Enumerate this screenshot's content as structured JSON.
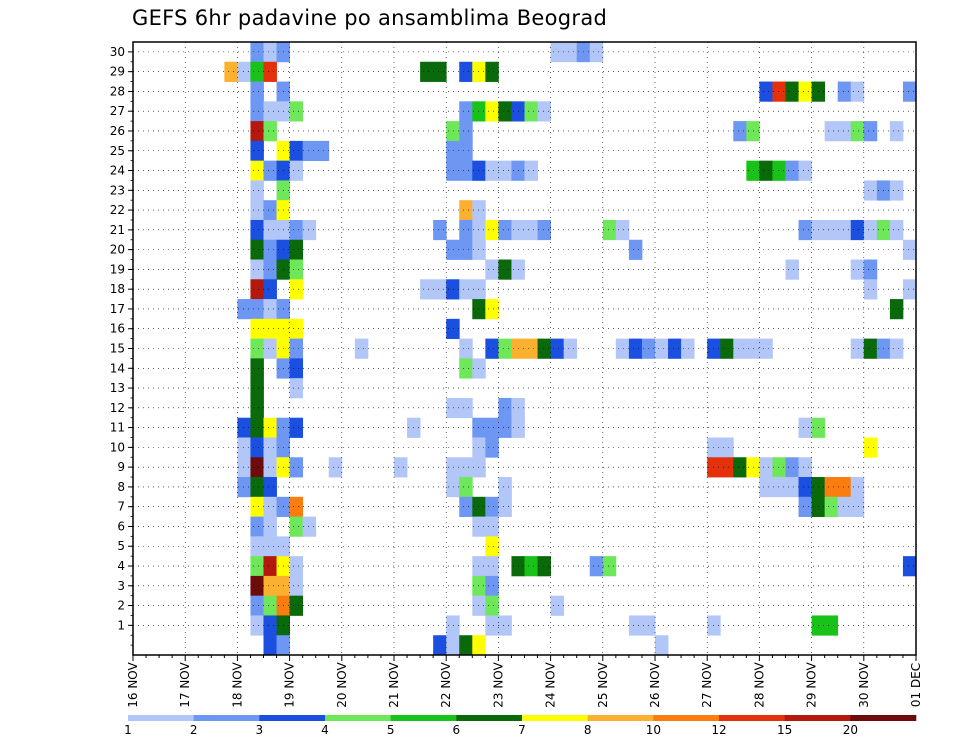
{
  "chart_data": {
    "type": "heatmap",
    "title": "GEFS 6hr padavine po ansamblima Beograd",
    "x_tick_labels": [
      "16 NOV",
      "17 NOV",
      "18 NOV",
      "19 NOV",
      "20 NOV",
      "21 NOV",
      "22 NOV",
      "23 NOV",
      "24 NOV",
      "25 NOV",
      "26 NOV",
      "27 NOV",
      "28 NOV",
      "29 NOV",
      "30 NOV",
      "01 DEC"
    ],
    "x_range": [
      "16 NOV 00h",
      "01 DEC 00h"
    ],
    "x_step_hours": 6,
    "y_tick_labels": [
      1,
      2,
      3,
      4,
      5,
      6,
      7,
      8,
      9,
      10,
      11,
      12,
      13,
      14,
      15,
      16,
      17,
      18,
      19,
      20,
      21,
      22,
      23,
      24,
      25,
      26,
      27,
      28,
      29,
      30
    ],
    "y_range": [
      0,
      30
    ],
    "grid": true,
    "colorbar": {
      "position": "bottom",
      "labels": [
        "1",
        "2",
        "3",
        "4",
        "5",
        "6",
        "7",
        "8",
        "10",
        "12",
        "15",
        "20"
      ],
      "colors": [
        "#b3c6f8",
        "#6e97f3",
        "#1a4fe0",
        "#6ee85a",
        "#19c218",
        "#0a6a0b",
        "#ffff00",
        "#fcb030",
        "#fc7d0f",
        "#e4300b",
        "#b5180c",
        "#6e0b0b"
      ]
    },
    "cells_note": "each record: [ensemble member, start step index (6h steps from 16 NOV 00h), color class index 1-12, run length in steps]",
    "cells": [
      [
        30,
        9,
        2,
        1
      ],
      [
        30,
        10,
        1,
        2
      ],
      [
        30,
        11,
        2,
        1
      ],
      [
        30,
        32,
        1,
        2
      ],
      [
        30,
        34,
        2,
        1
      ],
      [
        30,
        35,
        1,
        1
      ],
      [
        29,
        7,
        8,
        1
      ],
      [
        29,
        8,
        1,
        1
      ],
      [
        29,
        9,
        5,
        1
      ],
      [
        29,
        10,
        10,
        1
      ],
      [
        29,
        22,
        6,
        2
      ],
      [
        29,
        25,
        3,
        1
      ],
      [
        29,
        26,
        7,
        1
      ],
      [
        29,
        27,
        6,
        1
      ],
      [
        28,
        9,
        2,
        1
      ],
      [
        28,
        11,
        2,
        1
      ],
      [
        28,
        48,
        3,
        1
      ],
      [
        28,
        49,
        10,
        1
      ],
      [
        28,
        50,
        6,
        1
      ],
      [
        28,
        51,
        7,
        1
      ],
      [
        28,
        52,
        6,
        1
      ],
      [
        28,
        54,
        2,
        1
      ],
      [
        28,
        55,
        1,
        1
      ],
      [
        28,
        59,
        2,
        1
      ],
      [
        27,
        9,
        2,
        1
      ],
      [
        27,
        10,
        1,
        2
      ],
      [
        27,
        12,
        4,
        1
      ],
      [
        27,
        25,
        2,
        1
      ],
      [
        27,
        26,
        5,
        1
      ],
      [
        27,
        27,
        7,
        1
      ],
      [
        27,
        28,
        6,
        1
      ],
      [
        27,
        29,
        3,
        1
      ],
      [
        27,
        30,
        4,
        1
      ],
      [
        27,
        31,
        1,
        1
      ],
      [
        26,
        9,
        11,
        1
      ],
      [
        26,
        10,
        4,
        1
      ],
      [
        26,
        24,
        4,
        1
      ],
      [
        26,
        25,
        2,
        1
      ],
      [
        26,
        46,
        2,
        1
      ],
      [
        26,
        47,
        4,
        1
      ],
      [
        26,
        53,
        1,
        1
      ],
      [
        26,
        54,
        1,
        1
      ],
      [
        26,
        55,
        4,
        1
      ],
      [
        26,
        56,
        2,
        1
      ],
      [
        26,
        58,
        1,
        1
      ],
      [
        25,
        9,
        3,
        1
      ],
      [
        25,
        11,
        7,
        1
      ],
      [
        25,
        12,
        3,
        1
      ],
      [
        25,
        13,
        2,
        2
      ],
      [
        25,
        24,
        2,
        2
      ],
      [
        24,
        9,
        7,
        1
      ],
      [
        24,
        10,
        2,
        1
      ],
      [
        24,
        11,
        3,
        1
      ],
      [
        24,
        12,
        1,
        1
      ],
      [
        24,
        24,
        2,
        2
      ],
      [
        24,
        26,
        3,
        1
      ],
      [
        24,
        27,
        1,
        2
      ],
      [
        24,
        29,
        2,
        1
      ],
      [
        24,
        30,
        1,
        1
      ],
      [
        24,
        47,
        5,
        1
      ],
      [
        24,
        48,
        6,
        1
      ],
      [
        24,
        49,
        5,
        1
      ],
      [
        24,
        50,
        2,
        1
      ],
      [
        24,
        51,
        1,
        1
      ],
      [
        23,
        9,
        1,
        1
      ],
      [
        23,
        11,
        4,
        1
      ],
      [
        23,
        56,
        1,
        1
      ],
      [
        23,
        57,
        2,
        1
      ],
      [
        23,
        58,
        1,
        1
      ],
      [
        22,
        9,
        1,
        1
      ],
      [
        22,
        10,
        2,
        1
      ],
      [
        22,
        11,
        7,
        1
      ],
      [
        22,
        25,
        8,
        1
      ],
      [
        22,
        26,
        1,
        1
      ],
      [
        21,
        9,
        3,
        1
      ],
      [
        21,
        10,
        1,
        2
      ],
      [
        21,
        12,
        2,
        1
      ],
      [
        21,
        13,
        1,
        1
      ],
      [
        21,
        23,
        2,
        1
      ],
      [
        21,
        25,
        2,
        1
      ],
      [
        21,
        26,
        1,
        1
      ],
      [
        21,
        27,
        7,
        1
      ],
      [
        21,
        28,
        2,
        1
      ],
      [
        21,
        29,
        1,
        2
      ],
      [
        21,
        31,
        2,
        1
      ],
      [
        21,
        36,
        4,
        1
      ],
      [
        21,
        37,
        1,
        1
      ],
      [
        21,
        51,
        2,
        1
      ],
      [
        21,
        52,
        1,
        2
      ],
      [
        21,
        54,
        1,
        1
      ],
      [
        21,
        55,
        3,
        1
      ],
      [
        21,
        56,
        1,
        1
      ],
      [
        21,
        57,
        4,
        1
      ],
      [
        21,
        58,
        1,
        1
      ],
      [
        20,
        9,
        6,
        1
      ],
      [
        20,
        10,
        2,
        1
      ],
      [
        20,
        11,
        3,
        1
      ],
      [
        20,
        12,
        6,
        1
      ],
      [
        20,
        24,
        2,
        2
      ],
      [
        20,
        26,
        1,
        1
      ],
      [
        20,
        38,
        2,
        1
      ],
      [
        20,
        59,
        1,
        1
      ],
      [
        19,
        9,
        1,
        1
      ],
      [
        19,
        10,
        2,
        1
      ],
      [
        19,
        11,
        6,
        1
      ],
      [
        19,
        12,
        4,
        1
      ],
      [
        19,
        27,
        1,
        1
      ],
      [
        19,
        28,
        6,
        1
      ],
      [
        19,
        29,
        1,
        1
      ],
      [
        19,
        50,
        1,
        1
      ],
      [
        19,
        55,
        1,
        1
      ],
      [
        19,
        56,
        2,
        1
      ],
      [
        18,
        9,
        11,
        1
      ],
      [
        18,
        10,
        3,
        1
      ],
      [
        18,
        12,
        7,
        1
      ],
      [
        18,
        22,
        1,
        2
      ],
      [
        18,
        24,
        3,
        1
      ],
      [
        18,
        25,
        1,
        2
      ],
      [
        18,
        56,
        1,
        1
      ],
      [
        18,
        59,
        1,
        1
      ],
      [
        17,
        8,
        2,
        2
      ],
      [
        17,
        10,
        1,
        1
      ],
      [
        17,
        11,
        2,
        1
      ],
      [
        17,
        26,
        6,
        1
      ],
      [
        17,
        27,
        7,
        1
      ],
      [
        17,
        58,
        6,
        1
      ],
      [
        16,
        9,
        7,
        3
      ],
      [
        16,
        12,
        7,
        1
      ],
      [
        16,
        24,
        3,
        1
      ],
      [
        15,
        9,
        4,
        1
      ],
      [
        15,
        10,
        1,
        1
      ],
      [
        15,
        11,
        7,
        1
      ],
      [
        15,
        12,
        2,
        1
      ],
      [
        15,
        17,
        1,
        1
      ],
      [
        15,
        25,
        1,
        1
      ],
      [
        15,
        27,
        3,
        1
      ],
      [
        15,
        28,
        4,
        1
      ],
      [
        15,
        29,
        8,
        2
      ],
      [
        15,
        31,
        6,
        1
      ],
      [
        15,
        32,
        3,
        1
      ],
      [
        15,
        33,
        1,
        1
      ],
      [
        15,
        37,
        1,
        1
      ],
      [
        15,
        38,
        3,
        1
      ],
      [
        15,
        39,
        2,
        1
      ],
      [
        15,
        40,
        1,
        1
      ],
      [
        15,
        41,
        3,
        1
      ],
      [
        15,
        42,
        1,
        1
      ],
      [
        15,
        44,
        3,
        1
      ],
      [
        15,
        45,
        6,
        1
      ],
      [
        15,
        46,
        1,
        2
      ],
      [
        15,
        48,
        1,
        1
      ],
      [
        15,
        55,
        1,
        1
      ],
      [
        15,
        56,
        6,
        1
      ],
      [
        15,
        57,
        2,
        1
      ],
      [
        15,
        58,
        1,
        1
      ],
      [
        14,
        9,
        6,
        1
      ],
      [
        14,
        11,
        2,
        1
      ],
      [
        14,
        12,
        3,
        1
      ],
      [
        14,
        25,
        4,
        1
      ],
      [
        14,
        26,
        1,
        1
      ],
      [
        13,
        9,
        6,
        1
      ],
      [
        13,
        12,
        1,
        1
      ],
      [
        12,
        9,
        6,
        1
      ],
      [
        12,
        24,
        1,
        2
      ],
      [
        12,
        28,
        2,
        1
      ],
      [
        12,
        29,
        1,
        1
      ],
      [
        11,
        8,
        3,
        1
      ],
      [
        11,
        9,
        6,
        1
      ],
      [
        11,
        10,
        7,
        1
      ],
      [
        11,
        11,
        2,
        1
      ],
      [
        11,
        12,
        3,
        1
      ],
      [
        11,
        21,
        1,
        1
      ],
      [
        11,
        26,
        2,
        1
      ],
      [
        11,
        27,
        2,
        2
      ],
      [
        11,
        29,
        1,
        1
      ],
      [
        11,
        51,
        1,
        1
      ],
      [
        11,
        52,
        4,
        1
      ],
      [
        10,
        8,
        1,
        1
      ],
      [
        10,
        9,
        3,
        1
      ],
      [
        10,
        10,
        1,
        1
      ],
      [
        10,
        11,
        2,
        1
      ],
      [
        10,
        26,
        1,
        1
      ],
      [
        10,
        27,
        2,
        1
      ],
      [
        10,
        44,
        1,
        2
      ],
      [
        10,
        56,
        7,
        1
      ],
      [
        9,
        8,
        1,
        1
      ],
      [
        9,
        9,
        12,
        1
      ],
      [
        9,
        10,
        1,
        1
      ],
      [
        9,
        11,
        7,
        1
      ],
      [
        9,
        12,
        2,
        1
      ],
      [
        9,
        15,
        1,
        1
      ],
      [
        9,
        20,
        1,
        1
      ],
      [
        9,
        24,
        1,
        3
      ],
      [
        9,
        44,
        10,
        2
      ],
      [
        9,
        46,
        6,
        1
      ],
      [
        9,
        47,
        7,
        1
      ],
      [
        9,
        48,
        1,
        1
      ],
      [
        9,
        49,
        4,
        1
      ],
      [
        9,
        50,
        2,
        1
      ],
      [
        9,
        51,
        1,
        1
      ],
      [
        8,
        8,
        2,
        1
      ],
      [
        8,
        9,
        6,
        1
      ],
      [
        8,
        10,
        3,
        1
      ],
      [
        8,
        24,
        1,
        1
      ],
      [
        8,
        25,
        4,
        1
      ],
      [
        8,
        28,
        1,
        1
      ],
      [
        8,
        48,
        1,
        3
      ],
      [
        8,
        51,
        3,
        1
      ],
      [
        8,
        52,
        6,
        1
      ],
      [
        8,
        53,
        9,
        2
      ],
      [
        8,
        55,
        1,
        1
      ],
      [
        7,
        9,
        7,
        1
      ],
      [
        7,
        10,
        1,
        1
      ],
      [
        7,
        11,
        2,
        1
      ],
      [
        7,
        12,
        9,
        1
      ],
      [
        7,
        25,
        2,
        1
      ],
      [
        7,
        26,
        6,
        1
      ],
      [
        7,
        27,
        2,
        1
      ],
      [
        7,
        28,
        1,
        1
      ],
      [
        7,
        51,
        2,
        1
      ],
      [
        7,
        52,
        6,
        1
      ],
      [
        7,
        53,
        4,
        1
      ],
      [
        7,
        54,
        1,
        2
      ],
      [
        6,
        9,
        2,
        1
      ],
      [
        6,
        10,
        1,
        1
      ],
      [
        6,
        12,
        4,
        1
      ],
      [
        6,
        13,
        1,
        1
      ],
      [
        6,
        26,
        1,
        2
      ],
      [
        5,
        9,
        1,
        3
      ],
      [
        5,
        27,
        7,
        1
      ],
      [
        4,
        9,
        4,
        1
      ],
      [
        4,
        10,
        11,
        1
      ],
      [
        4,
        11,
        7,
        1
      ],
      [
        4,
        12,
        1,
        1
      ],
      [
        4,
        26,
        1,
        2
      ],
      [
        4,
        29,
        6,
        1
      ],
      [
        4,
        30,
        5,
        1
      ],
      [
        4,
        31,
        6,
        1
      ],
      [
        4,
        35,
        2,
        1
      ],
      [
        4,
        36,
        4,
        1
      ],
      [
        4,
        59,
        3,
        1
      ],
      [
        3,
        9,
        12,
        1
      ],
      [
        3,
        10,
        8,
        2
      ],
      [
        3,
        12,
        1,
        1
      ],
      [
        3,
        26,
        4,
        1
      ],
      [
        3,
        27,
        2,
        1
      ],
      [
        2,
        9,
        2,
        1
      ],
      [
        2,
        10,
        4,
        1
      ],
      [
        2,
        11,
        9,
        1
      ],
      [
        2,
        12,
        6,
        1
      ],
      [
        2,
        26,
        1,
        1
      ],
      [
        2,
        27,
        4,
        1
      ],
      [
        2,
        32,
        1,
        1
      ],
      [
        1,
        9,
        1,
        1
      ],
      [
        1,
        10,
        3,
        1
      ],
      [
        1,
        11,
        6,
        1
      ],
      [
        1,
        24,
        1,
        1
      ],
      [
        1,
        27,
        1,
        2
      ],
      [
        1,
        38,
        1,
        2
      ],
      [
        1,
        44,
        1,
        1
      ],
      [
        1,
        52,
        5,
        2
      ],
      [
        0,
        10,
        3,
        1
      ],
      [
        0,
        11,
        2,
        1
      ],
      [
        0,
        23,
        3,
        1
      ],
      [
        0,
        24,
        1,
        1
      ],
      [
        0,
        25,
        6,
        1
      ],
      [
        0,
        26,
        7,
        1
      ],
      [
        0,
        40,
        1,
        1
      ]
    ]
  }
}
